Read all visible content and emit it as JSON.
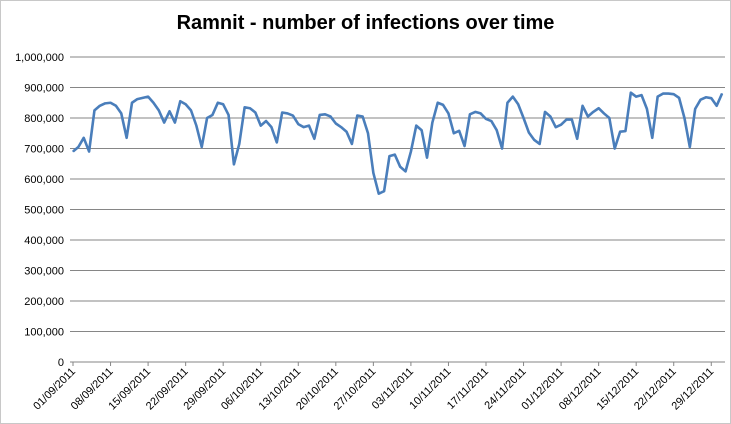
{
  "chart_data": {
    "type": "line",
    "title": "Ramnit - number of infections over time",
    "xlabel": "",
    "ylabel": "",
    "ylim": [
      0,
      1000000
    ],
    "y_ticks": [
      {
        "value": 0,
        "label": "0"
      },
      {
        "value": 100000,
        "label": "100,000"
      },
      {
        "value": 200000,
        "label": "200,000"
      },
      {
        "value": 300000,
        "label": "300,000"
      },
      {
        "value": 400000,
        "label": "400,000"
      },
      {
        "value": 500000,
        "label": "500,000"
      },
      {
        "value": 600000,
        "label": "600,000"
      },
      {
        "value": 700000,
        "label": "700,000"
      },
      {
        "value": 800000,
        "label": "800,000"
      },
      {
        "value": 900000,
        "label": "900,000"
      },
      {
        "value": 1000000,
        "label": "1,000,000"
      }
    ],
    "x_ticks": [
      {
        "index": 0,
        "label": "01/09/2011"
      },
      {
        "index": 7,
        "label": "08/09/2011"
      },
      {
        "index": 14,
        "label": "15/09/2011"
      },
      {
        "index": 21,
        "label": "22/09/2011"
      },
      {
        "index": 28,
        "label": "29/09/2011"
      },
      {
        "index": 35,
        "label": "06/10/2011"
      },
      {
        "index": 42,
        "label": "13/10/2011"
      },
      {
        "index": 49,
        "label": "20/10/2011"
      },
      {
        "index": 56,
        "label": "27/10/2011"
      },
      {
        "index": 63,
        "label": "03/11/2011"
      },
      {
        "index": 70,
        "label": "10/11/2011"
      },
      {
        "index": 77,
        "label": "17/11/2011"
      },
      {
        "index": 84,
        "label": "24/11/2011"
      },
      {
        "index": 91,
        "label": "01/12/2011"
      },
      {
        "index": 98,
        "label": "08/12/2011"
      },
      {
        "index": 105,
        "label": "15/12/2011"
      },
      {
        "index": 112,
        "label": "22/12/2011"
      },
      {
        "index": 119,
        "label": "29/12/2011"
      }
    ],
    "grid": "horizontal",
    "legend": "none",
    "series": [
      {
        "color": "#4a7ebb",
        "x_start": "01/09/2011",
        "x_step": "1 day",
        "values": [
          690000,
          705000,
          735000,
          690000,
          825000,
          840000,
          848000,
          850000,
          840000,
          815000,
          735000,
          850000,
          862000,
          866000,
          870000,
          850000,
          825000,
          785000,
          822000,
          785000,
          855000,
          845000,
          825000,
          775000,
          705000,
          800000,
          810000,
          850000,
          845000,
          810000,
          648000,
          715000,
          835000,
          832000,
          818000,
          775000,
          790000,
          770000,
          720000,
          818000,
          815000,
          808000,
          780000,
          770000,
          775000,
          732000,
          810000,
          812000,
          805000,
          782000,
          770000,
          755000,
          715000,
          808000,
          805000,
          750000,
          620000,
          552000,
          560000,
          675000,
          680000,
          640000,
          625000,
          690000,
          775000,
          760000,
          670000,
          785000,
          850000,
          843000,
          815000,
          750000,
          758000,
          708000,
          812000,
          820000,
          815000,
          797000,
          790000,
          760000,
          700000,
          850000,
          870000,
          845000,
          800000,
          752000,
          728000,
          715000,
          820000,
          805000,
          770000,
          778000,
          795000,
          795000,
          732000,
          840000,
          805000,
          820000,
          832000,
          815000,
          800000,
          700000,
          755000,
          757000,
          883000,
          870000,
          875000,
          830000,
          735000,
          870000,
          880000,
          880000,
          878000,
          866000,
          800000,
          705000,
          830000,
          860000,
          868000,
          865000,
          840000,
          880000
        ]
      }
    ]
  }
}
